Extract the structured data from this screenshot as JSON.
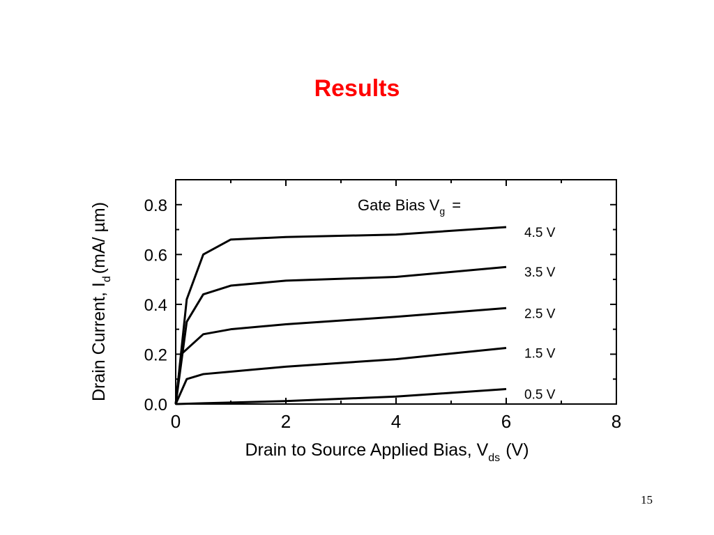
{
  "slide": {
    "title": "Results",
    "page_number": "15"
  },
  "chart_data": {
    "type": "line",
    "xlabel": "Drain to Source Applied Bias, V",
    "xlabel_sub": "ds",
    "xlabel_suffix": "(V)",
    "ylabel": "Drain Current, I",
    "ylabel_sub": "d",
    "ylabel_suffix": "(mA/ µm)",
    "xlim": [
      0,
      8
    ],
    "ylim": [
      0,
      0.9
    ],
    "xticks": [
      "0",
      "2",
      "4",
      "6",
      "8"
    ],
    "yticks": [
      "0.0",
      "0.2",
      "0.4",
      "0.6",
      "0.8"
    ],
    "grid": false,
    "legend_title": "Gate Bias V",
    "legend_title_sub": "g",
    "legend_title_suffix": "=",
    "color": "#000000",
    "series": [
      {
        "name": "4.5  V",
        "x": [
          0,
          0.2,
          0.5,
          1.0,
          2.0,
          4.0,
          6.0
        ],
        "y": [
          0,
          0.42,
          0.6,
          0.66,
          0.67,
          0.68,
          0.71
        ]
      },
      {
        "name": "3.5 V",
        "x": [
          0,
          0.2,
          0.5,
          1.0,
          2.0,
          4.0,
          6.0
        ],
        "y": [
          0,
          0.33,
          0.44,
          0.475,
          0.495,
          0.51,
          0.55
        ]
      },
      {
        "name": "2.5 V",
        "x": [
          0,
          0.1,
          0.5,
          1.0,
          2.0,
          4.0,
          6.0
        ],
        "y": [
          0,
          0.2,
          0.28,
          0.3,
          0.32,
          0.35,
          0.385
        ]
      },
      {
        "name": "1.5 V",
        "x": [
          0,
          0.2,
          0.5,
          1.0,
          2.0,
          4.0,
          6.0
        ],
        "y": [
          0,
          0.1,
          0.12,
          0.13,
          0.15,
          0.18,
          0.225
        ]
      },
      {
        "name": "0.5 V",
        "x": [
          0,
          0.5,
          1.0,
          2.0,
          4.0,
          6.0
        ],
        "y": [
          0,
          0.003,
          0.006,
          0.012,
          0.03,
          0.06
        ]
      }
    ]
  }
}
